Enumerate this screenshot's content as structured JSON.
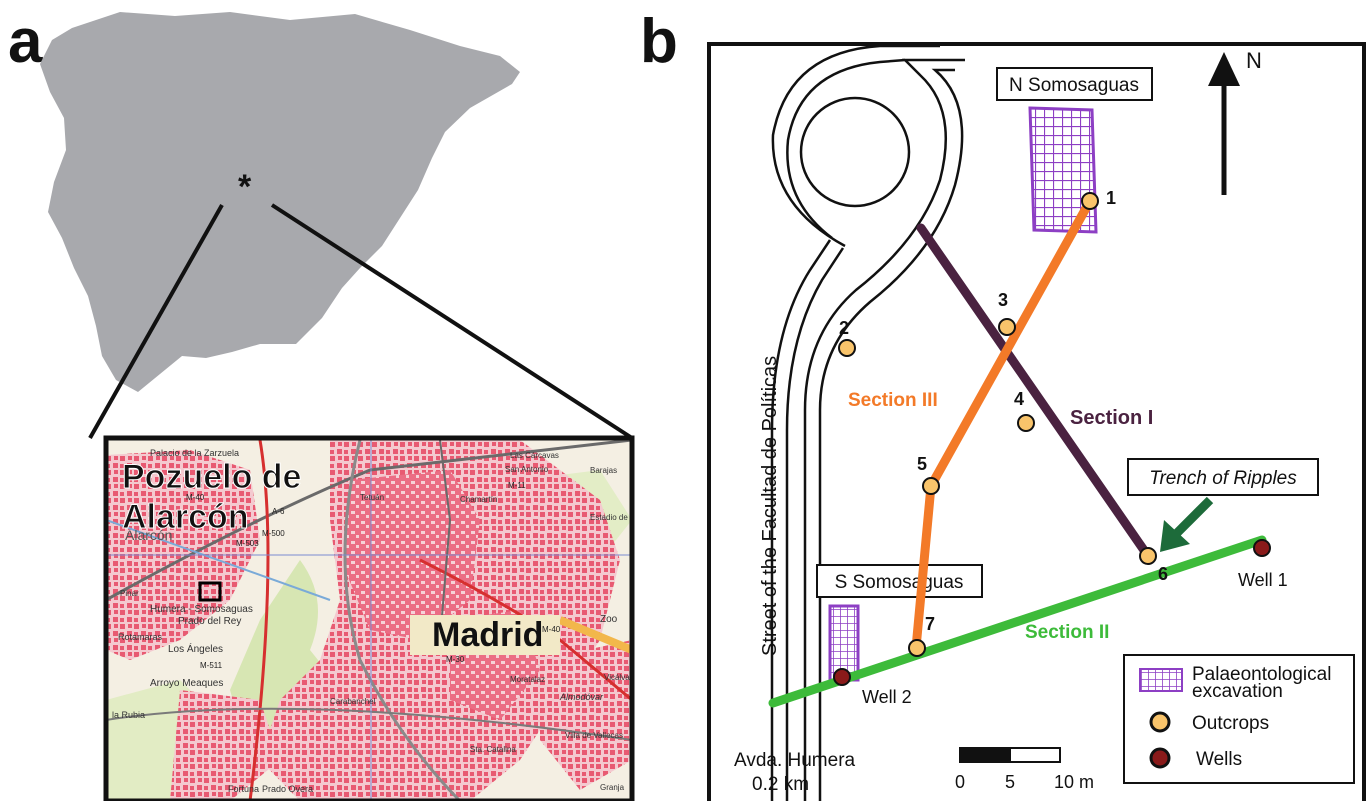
{
  "panel_a": {
    "letter": "a",
    "site_marker": "*",
    "inset_labels": {
      "town": "Pozuelo de",
      "town2": "Alarcón",
      "city": "Madrid",
      "small": [
        "Palacio de la Zarzuela",
        "Las Cárcavas",
        "San Antonio",
        "Barajas",
        "Alarcón",
        "Humera - Somosaguas",
        "Prado del Rey",
        "Rotamaras",
        "Los Ángeles",
        "Arroyo Meaques",
        "la Rubia",
        "Chamartín",
        "Estadio de",
        "Zoo",
        "Villa de Vallecas",
        "Fortuna",
        "Prado Overa",
        "Granja",
        "Vicálva",
        "Almodóvar",
        "Sta. Catalina",
        "Moratalaz",
        "Carabanchel",
        "Tetuán",
        "Pinar"
      ],
      "roads": [
        "A-6",
        "M-500",
        "M-503",
        "M-40",
        "M-11",
        "M-511",
        "M-30",
        "M-40"
      ]
    }
  },
  "panel_b": {
    "letter": "b",
    "north": "N",
    "excavations": [
      "N Somosaguas",
      "S Somosaguas"
    ],
    "street": "Street of the Facultad de Políticas",
    "avda": [
      "Avda. Humera",
      "0.2 km"
    ],
    "trench": "Trench of Ripples",
    "sections": [
      {
        "name": "Section I",
        "color": "#4a2240"
      },
      {
        "name": "Section II",
        "color": "#3dbb3a"
      },
      {
        "name": "Section III",
        "color": "#f37a28"
      }
    ],
    "outcrops": [
      "1",
      "2",
      "3",
      "4",
      "5",
      "6",
      "7"
    ],
    "wells": [
      "Well 1",
      "Well 2"
    ],
    "scale": {
      "ticks": [
        "0",
        "5",
        "10 m"
      ]
    },
    "legend": [
      {
        "label": "Palaeontological",
        "label2": "excavation",
        "icon": "grid-swatch"
      },
      {
        "label": "Outcrops",
        "icon": "outcrop-circle"
      },
      {
        "label": "Wells",
        "icon": "well-circle"
      }
    ],
    "colors": {
      "outcrop": "#f9c46b",
      "well": "#8a1a1a",
      "grid": "#8d3fc4",
      "arrow": "#1d6b3a"
    }
  }
}
